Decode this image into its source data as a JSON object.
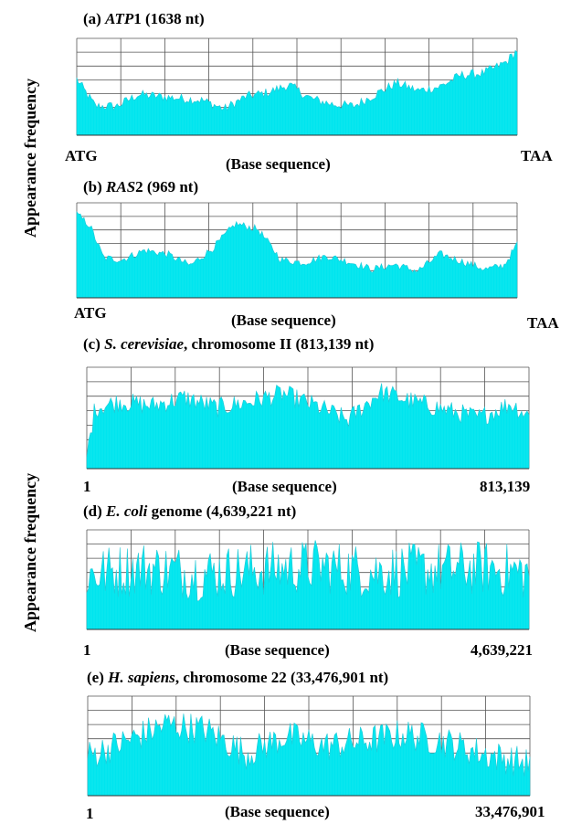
{
  "y_axis_labels": [
    "Appearance frequency",
    "Appearance frequency"
  ],
  "chart_data": [
    {
      "type": "area",
      "title": {
        "prefix": "(a) ",
        "italic": "ATP",
        "suffix": "1 (1638 nt)"
      },
      "xlabel": "(Base sequence)",
      "x_start_label": "ATG",
      "x_end_label": "TAA",
      "xlim": [
        1,
        1638
      ],
      "grid": true,
      "color": "#00e5ee",
      "x": [
        1,
        70,
        150,
        230,
        310,
        390,
        470,
        550,
        630,
        710,
        790,
        870,
        950,
        1030,
        1110,
        1190,
        1270,
        1350,
        1430,
        1510,
        1560,
        1600,
        1638
      ],
      "values": [
        0.58,
        0.3,
        0.3,
        0.42,
        0.4,
        0.38,
        0.36,
        0.27,
        0.4,
        0.44,
        0.52,
        0.38,
        0.32,
        0.3,
        0.42,
        0.54,
        0.46,
        0.5,
        0.62,
        0.64,
        0.7,
        0.76,
        0.88
      ]
    },
    {
      "type": "area",
      "title": {
        "prefix": "(b) ",
        "italic": "RAS",
        "suffix": "2 (969 nt)"
      },
      "xlabel": "(Base sequence)",
      "x_start_label": "ATG",
      "x_end_label": "TAA",
      "xlim": [
        1,
        969
      ],
      "grid": true,
      "color": "#00e5ee",
      "x": [
        1,
        30,
        60,
        100,
        150,
        200,
        250,
        300,
        350,
        400,
        450,
        500,
        550,
        600,
        650,
        700,
        750,
        800,
        850,
        900,
        940,
        969
      ],
      "values": [
        0.88,
        0.76,
        0.42,
        0.4,
        0.5,
        0.46,
        0.34,
        0.52,
        0.78,
        0.72,
        0.4,
        0.37,
        0.44,
        0.38,
        0.3,
        0.35,
        0.28,
        0.46,
        0.38,
        0.3,
        0.34,
        0.56
      ]
    },
    {
      "type": "area",
      "title": {
        "prefix": "(c) ",
        "italic": "S. cerevisiae",
        "suffix": ", chromosome II (813,139 nt)"
      },
      "xlabel": "(Base sequence)",
      "x_start_label": "1",
      "x_end_label": "813,139",
      "xlim": [
        1,
        813139
      ],
      "grid": true,
      "color": "#00e5ee",
      "x": [
        1,
        15000,
        60000,
        120000,
        180000,
        240000,
        300000,
        360000,
        420000,
        480000,
        540000,
        600000,
        660000,
        720000,
        780000,
        813139
      ],
      "values": [
        0.12,
        0.6,
        0.66,
        0.62,
        0.7,
        0.6,
        0.66,
        0.74,
        0.62,
        0.48,
        0.76,
        0.66,
        0.58,
        0.5,
        0.64,
        0.52
      ]
    },
    {
      "type": "area",
      "title": {
        "prefix": "(d) ",
        "italic": "E. coli",
        "suffix": " genome (4,639,221 nt)"
      },
      "xlabel": "(Base sequence)",
      "x_start_label": "1",
      "x_end_label": "4,639,221",
      "xlim": [
        1,
        4639221
      ],
      "grid": true,
      "color": "#00e5ee",
      "x": [
        1,
        600000,
        1200000,
        1800000,
        2400000,
        3000000,
        3600000,
        4200000,
        4639221
      ],
      "values": [
        0.55,
        0.62,
        0.56,
        0.6,
        0.64,
        0.58,
        0.6,
        0.62,
        0.56
      ]
    },
    {
      "type": "area",
      "title": {
        "prefix": "(e) ",
        "italic": "H. sapiens",
        "suffix": ",  chromosome 22 (33,476,901 nt)"
      },
      "xlabel": "(Base sequence)",
      "x_start_label": "1",
      "x_end_label": "33,476,901",
      "xlim": [
        1,
        33476901
      ],
      "grid": true,
      "color": "#00e5ee",
      "x": [
        1,
        3000000,
        6000000,
        9000000,
        12000000,
        15000000,
        18000000,
        21000000,
        24000000,
        27000000,
        30000000,
        33476901
      ],
      "values": [
        0.4,
        0.55,
        0.72,
        0.66,
        0.42,
        0.6,
        0.5,
        0.55,
        0.62,
        0.54,
        0.42,
        0.32
      ]
    }
  ]
}
